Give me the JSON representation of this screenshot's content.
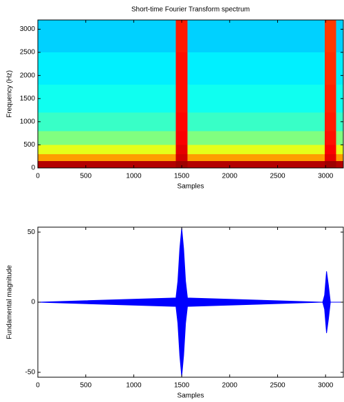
{
  "chart_data": [
    {
      "type": "heatmap",
      "title": "Short-time Fourier Transform spectrum",
      "x_label": "Samples",
      "y_label": "Frequency (Hz)",
      "x_edges": [
        0,
        1440,
        1560,
        2990,
        3110,
        3185
      ],
      "y_edges": [
        0,
        150,
        300,
        500,
        800,
        1200,
        1800,
        2500,
        3200
      ],
      "z": [
        [
          0.95,
          0.97,
          0.95,
          0.97,
          0.95
        ],
        [
          0.72,
          0.92,
          0.72,
          0.9,
          0.72
        ],
        [
          0.6,
          0.9,
          0.6,
          0.88,
          0.6
        ],
        [
          0.5,
          0.88,
          0.5,
          0.86,
          0.5
        ],
        [
          0.43,
          0.87,
          0.43,
          0.85,
          0.43
        ],
        [
          0.39,
          0.86,
          0.39,
          0.84,
          0.39
        ],
        [
          0.36,
          0.86,
          0.36,
          0.83,
          0.36
        ],
        [
          0.33,
          0.85,
          0.33,
          0.82,
          0.33
        ]
      ],
      "colormap": "jet",
      "clim": [
        0,
        1
      ],
      "xlim": [
        0,
        3185
      ],
      "ylim": [
        0,
        3200
      ],
      "xticks": [
        0,
        500,
        1000,
        1500,
        2000,
        2500,
        3000
      ],
      "yticks": [
        0,
        500,
        1000,
        1500,
        2000,
        2500,
        3000
      ]
    },
    {
      "type": "envelope",
      "x_label": "Samples",
      "y_label": "Fundamental magnitude",
      "color": "#0000ff",
      "x": [
        0,
        1440,
        1460,
        1480,
        1500,
        1520,
        1540,
        1560,
        2970,
        2990,
        3010,
        3030,
        3050,
        3185
      ],
      "upper": [
        0,
        3,
        15,
        38,
        53,
        38,
        15,
        3,
        0,
        5,
        22,
        12,
        0,
        0
      ],
      "lower": [
        0,
        -3,
        -15,
        -38,
        -53,
        -38,
        -15,
        -3,
        0,
        -5,
        -22,
        -12,
        0,
        0
      ],
      "xlim": [
        0,
        3185
      ],
      "ylim": [
        -53.5,
        53.5
      ],
      "xticks": [
        0,
        500,
        1000,
        1500,
        2000,
        2500,
        3000
      ],
      "yticks": [
        -50,
        0,
        50
      ]
    }
  ]
}
